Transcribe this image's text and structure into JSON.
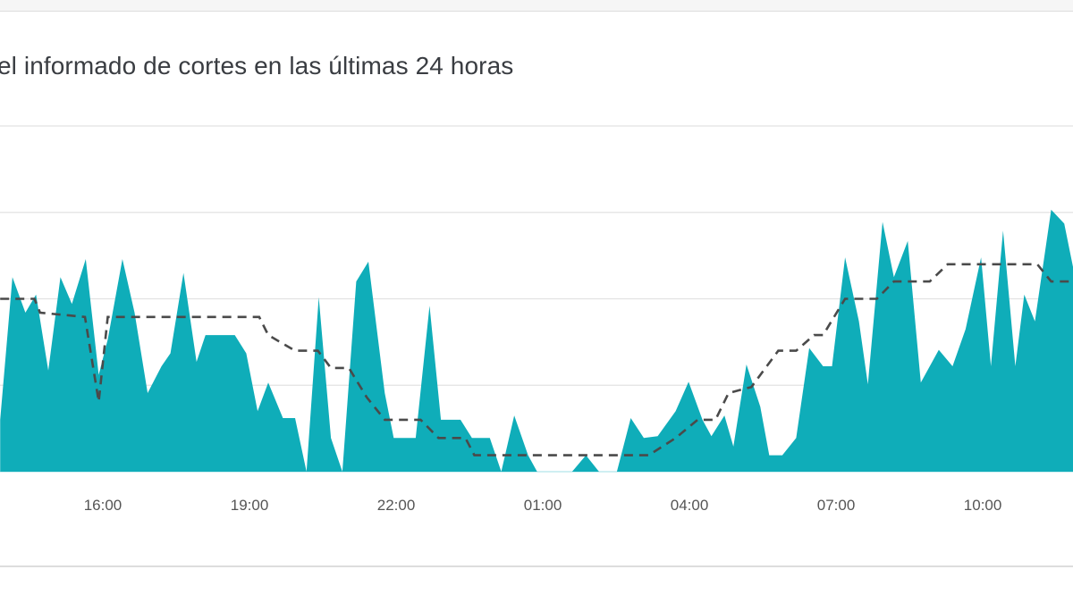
{
  "chart_data": {
    "type": "area",
    "title": "el informado de cortes en las últimas 24 horas",
    "xlabel": "",
    "ylabel": "",
    "x_ticks": [
      "16:00",
      "19:00",
      "22:00",
      "01:00",
      "04:00",
      "07:00",
      "10:00"
    ],
    "x_range": [
      "13:54",
      "11:51"
    ],
    "ylim": [
      0,
      4
    ],
    "y_units": "gridline intervals (no y tick labels printed)",
    "grid": true,
    "legend": "none",
    "colors": {
      "reports": "#0fadb9",
      "baseline": "#4a4a4a"
    },
    "series": [
      {
        "style": "filled-area",
        "points": [
          [
            "13:54",
            0.6
          ],
          [
            "14:09",
            2.25
          ],
          [
            "14:25",
            1.84
          ],
          [
            "14:38",
            2.05
          ],
          [
            "14:53",
            1.17
          ],
          [
            "15:08",
            2.25
          ],
          [
            "15:22",
            1.94
          ],
          [
            "15:39",
            2.46
          ],
          [
            "15:55",
            1.12
          ],
          [
            "16:06",
            1.53
          ],
          [
            "16:24",
            2.46
          ],
          [
            "16:39",
            1.84
          ],
          [
            "16:55",
            0.91
          ],
          [
            "17:12",
            1.22
          ],
          [
            "17:23",
            1.37
          ],
          [
            "17:39",
            2.3
          ],
          [
            "17:55",
            1.27
          ],
          [
            "18:06",
            1.58
          ],
          [
            "18:42",
            1.58
          ],
          [
            "18:56",
            1.37
          ],
          [
            "19:10",
            0.7
          ],
          [
            "19:23",
            1.03
          ],
          [
            "19:41",
            0.62
          ],
          [
            "19:56",
            0.62
          ],
          [
            "20:10",
            0
          ],
          [
            "20:25",
            2.02
          ],
          [
            "20:40",
            0.39
          ],
          [
            "20:54",
            0
          ],
          [
            "21:11",
            2.2
          ],
          [
            "21:26",
            2.43
          ],
          [
            "21:46",
            0.91
          ],
          [
            "21:57",
            0.39
          ],
          [
            "22:24",
            0.39
          ],
          [
            "22:41",
            1.92
          ],
          [
            "22:55",
            0.6
          ],
          [
            "23:19",
            0.6
          ],
          [
            "23:33",
            0.39
          ],
          [
            "23:55",
            0.39
          ],
          [
            "00:09",
            0
          ],
          [
            "00:25",
            0.65
          ],
          [
            "00:42",
            0.19
          ],
          [
            "00:53",
            0
          ],
          [
            "01:36",
            0
          ],
          [
            "01:53",
            0.19
          ],
          [
            "02:09",
            0
          ],
          [
            "02:31",
            0
          ],
          [
            "02:48",
            0.62
          ],
          [
            "03:04",
            0.39
          ],
          [
            "03:21",
            0.41
          ],
          [
            "03:43",
            0.7
          ],
          [
            "03:59",
            1.04
          ],
          [
            "04:16",
            0.6
          ],
          [
            "04:27",
            0.41
          ],
          [
            "04:43",
            0.65
          ],
          [
            "04:54",
            0.29
          ],
          [
            "05:10",
            1.24
          ],
          [
            "05:27",
            0.75
          ],
          [
            "05:38",
            0.19
          ],
          [
            "05:54",
            0.19
          ],
          [
            "06:11",
            0.39
          ],
          [
            "06:27",
            1.43
          ],
          [
            "06:44",
            1.22
          ],
          [
            "06:55",
            1.22
          ],
          [
            "07:11",
            2.48
          ],
          [
            "07:28",
            1.74
          ],
          [
            "07:39",
            1.01
          ],
          [
            "07:57",
            2.89
          ],
          [
            "08:11",
            2.25
          ],
          [
            "08:28",
            2.67
          ],
          [
            "08:44",
            1.03
          ],
          [
            "09:06",
            1.41
          ],
          [
            "09:23",
            1.22
          ],
          [
            "09:39",
            1.65
          ],
          [
            "09:58",
            2.48
          ],
          [
            "10:10",
            1.22
          ],
          [
            "10:25",
            2.79
          ],
          [
            "10:40",
            1.22
          ],
          [
            "10:51",
            2.05
          ],
          [
            "11:04",
            1.74
          ],
          [
            "11:24",
            3.03
          ],
          [
            "11:40",
            2.87
          ],
          [
            "11:51",
            2.36
          ]
        ]
      },
      {
        "style": "dashed-line",
        "points": [
          [
            "13:54",
            2.0
          ],
          [
            "14:36",
            2.0
          ],
          [
            "14:43",
            1.84
          ],
          [
            "15:38",
            1.79
          ],
          [
            "15:55",
            0.81
          ],
          [
            "16:06",
            1.79
          ],
          [
            "19:12",
            1.79
          ],
          [
            "19:23",
            1.58
          ],
          [
            "19:56",
            1.4
          ],
          [
            "20:24",
            1.4
          ],
          [
            "20:40",
            1.2
          ],
          [
            "21:02",
            1.2
          ],
          [
            "21:24",
            0.86
          ],
          [
            "21:46",
            0.6
          ],
          [
            "22:30",
            0.6
          ],
          [
            "22:52",
            0.39
          ],
          [
            "23:25",
            0.39
          ],
          [
            "23:36",
            0.19
          ],
          [
            "03:10",
            0.19
          ],
          [
            "03:43",
            0.39
          ],
          [
            "04:10",
            0.6
          ],
          [
            "04:32",
            0.6
          ],
          [
            "04:48",
            0.91
          ],
          [
            "05:16",
            0.98
          ],
          [
            "05:49",
            1.4
          ],
          [
            "06:11",
            1.4
          ],
          [
            "06:33",
            1.58
          ],
          [
            "06:44",
            1.58
          ],
          [
            "07:11",
            2.0
          ],
          [
            "07:50",
            2.0
          ],
          [
            "08:11",
            2.2
          ],
          [
            "08:55",
            2.2
          ],
          [
            "09:17",
            2.4
          ],
          [
            "11:07",
            2.4
          ],
          [
            "11:24",
            2.2
          ],
          [
            "11:51",
            2.2
          ]
        ]
      }
    ]
  }
}
